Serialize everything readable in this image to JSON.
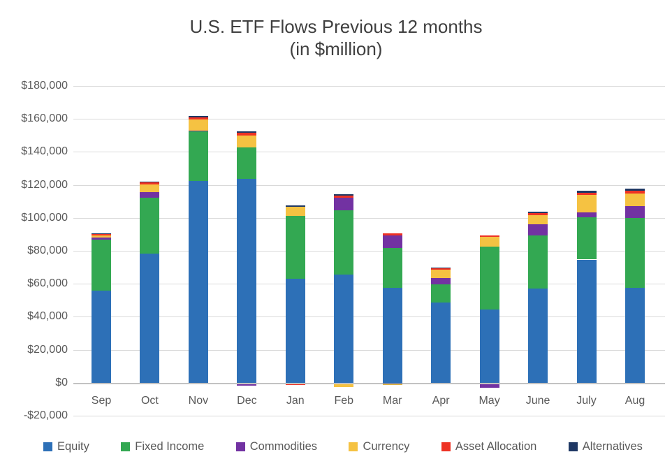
{
  "header": {
    "title": "U.S. ETF Flows Previous 12 months",
    "subtitle": "(in $million)"
  },
  "chart_data": {
    "type": "bar",
    "stacked": true,
    "title": "U.S. ETF Flows Previous 12 months",
    "subtitle": "(in $million)",
    "categories": [
      "Sep",
      "Oct",
      "Nov",
      "Dec",
      "Jan",
      "Feb",
      "Mar",
      "Apr",
      "May",
      "June",
      "July",
      "Aug"
    ],
    "series": [
      {
        "name": "Equity",
        "color": "#2d70b7",
        "values": [
          55800,
          78300,
          122200,
          123500,
          62900,
          65700,
          57700,
          48500,
          44300,
          57200,
          74700,
          57700
        ]
      },
      {
        "name": "Fixed Income",
        "color": "#33a852",
        "values": [
          30900,
          33900,
          30600,
          19100,
          38200,
          38800,
          24000,
          11300,
          38200,
          32000,
          25600,
          42400
        ]
      },
      {
        "name": "Commodities",
        "color": "#7232a2",
        "values": [
          1300,
          3500,
          200,
          -1100,
          0,
          7500,
          7600,
          3800,
          -2100,
          7100,
          2800,
          7100
        ]
      },
      {
        "name": "Currency",
        "color": "#f5c242",
        "values": [
          1400,
          4700,
          6500,
          7500,
          5600,
          -1900,
          -500,
          5100,
          6000,
          5200,
          11000,
          7500
        ]
      },
      {
        "name": "Asset Allocation",
        "color": "#ee3224",
        "values": [
          800,
          1300,
          1400,
          1500,
          -700,
          1300,
          1300,
          850,
          850,
          1300,
          1000,
          1700
        ]
      },
      {
        "name": "Alternatives",
        "color": "#1f3864",
        "values": [
          300,
          200,
          1000,
          800,
          850,
          850,
          -400,
          200,
          0,
          850,
          1400,
          1400
        ]
      }
    ],
    "ylim": [
      -20000,
      180000
    ],
    "ytick_step": 20000,
    "ytick_labels": [
      "$180,000",
      "$160,000",
      "$140,000",
      "$120,000",
      "$100,000",
      "$80,000",
      "$60,000",
      "$40,000",
      "$20,000",
      "$0",
      "-$20,000"
    ],
    "ytick_values": [
      180000,
      160000,
      140000,
      120000,
      100000,
      80000,
      60000,
      40000,
      20000,
      0,
      -20000
    ],
    "grid": true,
    "legend_position": "bottom",
    "legend_labels": [
      "Equity",
      "Fixed Income",
      "Commodities",
      "Currency",
      "Asset Allocation",
      "Alternatives"
    ],
    "text_color": "#595959",
    "title_color": "#404040",
    "gridline_color": "#d9d9d9"
  }
}
